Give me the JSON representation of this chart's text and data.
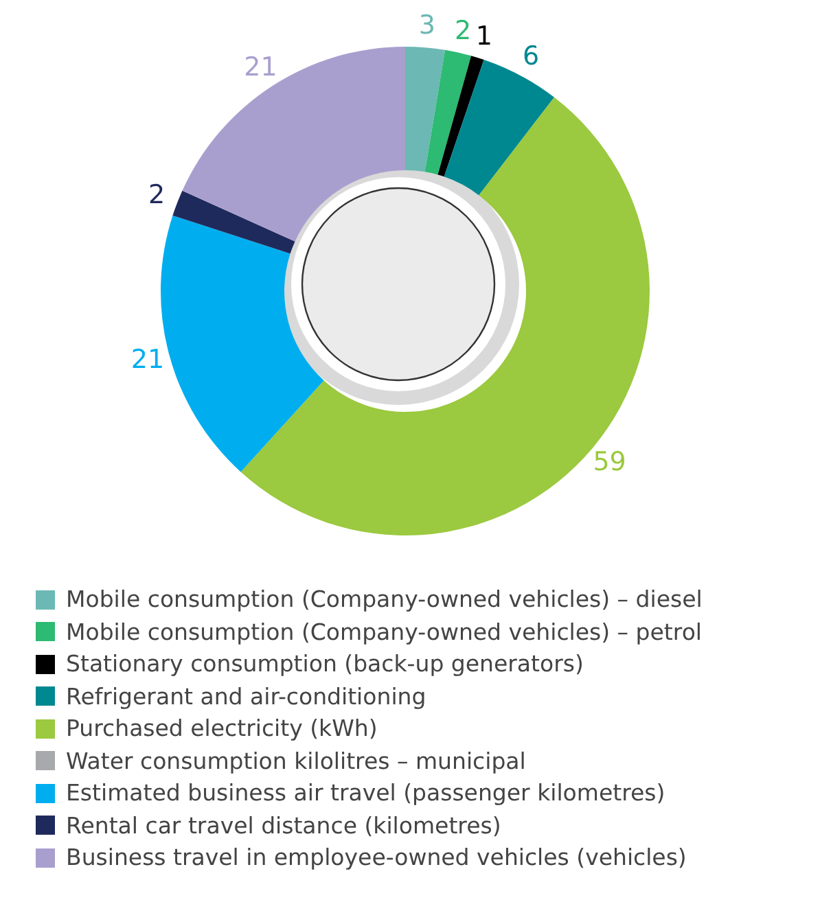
{
  "chart_data": {
    "type": "donut",
    "categories": [
      "Mobile consumption (Company-owned vehicles) – diesel",
      "Mobile consumption (Company-owned vehicles) – petrol",
      "Stationary consumption (back-up generators)",
      "Refrigerant and air-conditioning",
      "Purchased electricity (kWh)",
      "Water consumption kilolitres – municipal",
      "Estimated business air travel (passenger kilometres)",
      "Rental car travel distance (kilometres)",
      "Business travel in employee-owned vehicles (vehicles)"
    ],
    "values": [
      3,
      2,
      1,
      6,
      59,
      null,
      21,
      2,
      21
    ],
    "colors": [
      "#6cb8b4",
      "#2dba72",
      "#000000",
      "#008891",
      "#9bc93f",
      "#a7a9ac",
      "#00aeef",
      "#1f2a5c",
      "#a99fcf"
    ],
    "data_labels": true,
    "legend": "bottom"
  }
}
